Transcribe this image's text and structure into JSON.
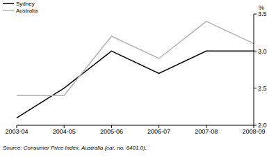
{
  "chart_data": {
    "type": "line",
    "categories": [
      "2003-04",
      "2004-05",
      "2005-06",
      "2006-07",
      "2007-08",
      "2008-09"
    ],
    "series": [
      {
        "name": "Sydney",
        "color": "#000000",
        "values": [
          2.1,
          2.5,
          3.0,
          2.7,
          3.0,
          3.0
        ]
      },
      {
        "name": "Australia",
        "color": "#b3b3b3",
        "values": [
          2.4,
          2.4,
          3.2,
          2.9,
          3.4,
          3.1
        ]
      }
    ],
    "y_label": "%",
    "ylim": [
      2.0,
      3.5
    ],
    "yticks": [
      {
        "value": 2.0,
        "label": "2.0"
      },
      {
        "value": 2.5,
        "label": "2.5"
      },
      {
        "value": 3.0,
        "label": "3.0"
      },
      {
        "value": 3.5,
        "label": "3.5"
      }
    ],
    "legend": "top-left",
    "grid": false,
    "annotation": "Source: Consumer Price Index, Australia (cat. no. 6401.0)."
  }
}
